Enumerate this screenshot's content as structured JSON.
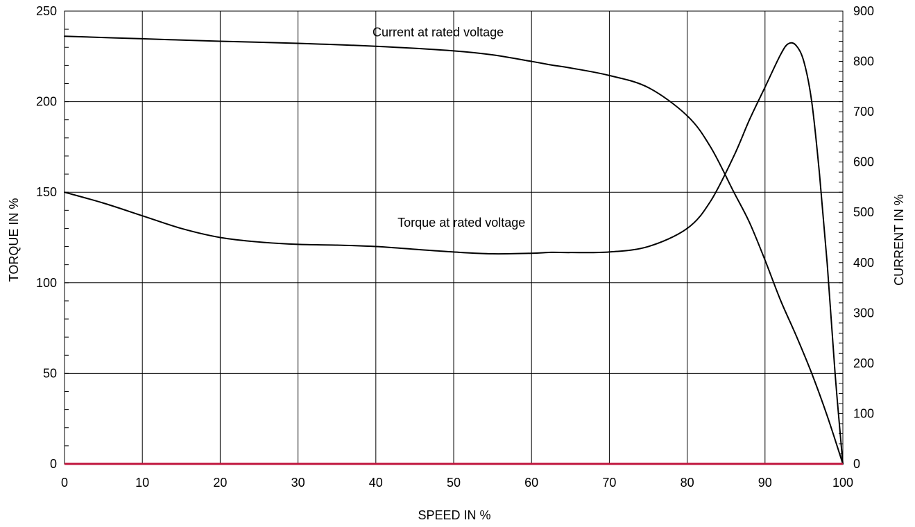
{
  "chart_data": {
    "type": "line",
    "title": "",
    "xlabel": "SPEED IN %",
    "ylabel": "TORQUE IN %",
    "y2label": "CURRENT IN %",
    "xlim": [
      0,
      100
    ],
    "ylim": [
      0,
      250
    ],
    "y2lim": [
      0,
      900
    ],
    "x_ticks": [
      "0",
      "10",
      "20",
      "30",
      "40",
      "50",
      "60",
      "70",
      "80",
      "90",
      "100"
    ],
    "y_ticks": [
      "0",
      "50",
      "100",
      "150",
      "200",
      "250"
    ],
    "y2_ticks": [
      "0",
      "100",
      "200",
      "300",
      "400",
      "500",
      "600",
      "700",
      "800",
      "900"
    ],
    "grid": true,
    "legend": "none",
    "zero_line_color": "#c0143c",
    "series": [
      {
        "name": "Torque at rated voltage",
        "axis": "left",
        "color": "#000000",
        "points": [
          [
            0,
            150
          ],
          [
            5,
            144
          ],
          [
            10,
            137
          ],
          [
            15,
            130
          ],
          [
            20,
            125
          ],
          [
            25,
            122.5
          ],
          [
            30,
            121.2
          ],
          [
            35,
            120.8
          ],
          [
            40,
            120
          ],
          [
            45,
            118.5
          ],
          [
            50,
            117
          ],
          [
            55,
            116
          ],
          [
            60,
            116.3
          ],
          [
            62.5,
            116.8
          ],
          [
            65,
            116.7
          ],
          [
            70,
            117
          ],
          [
            75,
            120
          ],
          [
            80,
            130
          ],
          [
            83,
            145
          ],
          [
            86,
            170
          ],
          [
            88,
            190
          ],
          [
            90,
            208
          ],
          [
            92,
            226
          ],
          [
            93,
            232
          ],
          [
            94,
            231
          ],
          [
            95,
            222
          ],
          [
            96,
            200
          ],
          [
            97,
            160
          ],
          [
            98,
            110
          ],
          [
            99,
            50
          ],
          [
            100,
            0
          ]
        ]
      },
      {
        "name": "Current at rated voltage",
        "axis": "right",
        "color": "#000000",
        "points": [
          [
            0,
            850
          ],
          [
            10,
            845
          ],
          [
            20,
            840
          ],
          [
            30,
            836
          ],
          [
            40,
            830
          ],
          [
            50,
            821
          ],
          [
            55,
            813
          ],
          [
            60,
            800
          ],
          [
            62.5,
            793
          ],
          [
            65,
            787
          ],
          [
            70,
            772
          ],
          [
            75,
            748
          ],
          [
            80,
            692
          ],
          [
            83,
            630
          ],
          [
            86,
            540
          ],
          [
            88,
            480
          ],
          [
            90,
            405
          ],
          [
            92,
            325
          ],
          [
            94,
            255
          ],
          [
            96,
            180
          ],
          [
            98,
            95
          ],
          [
            100,
            0
          ]
        ]
      }
    ],
    "annotations": [
      {
        "text": "Current at rated voltage",
        "x": 48,
        "y": 236
      },
      {
        "text": "Torque at rated voltage",
        "x": 51,
        "y": 131
      }
    ]
  }
}
